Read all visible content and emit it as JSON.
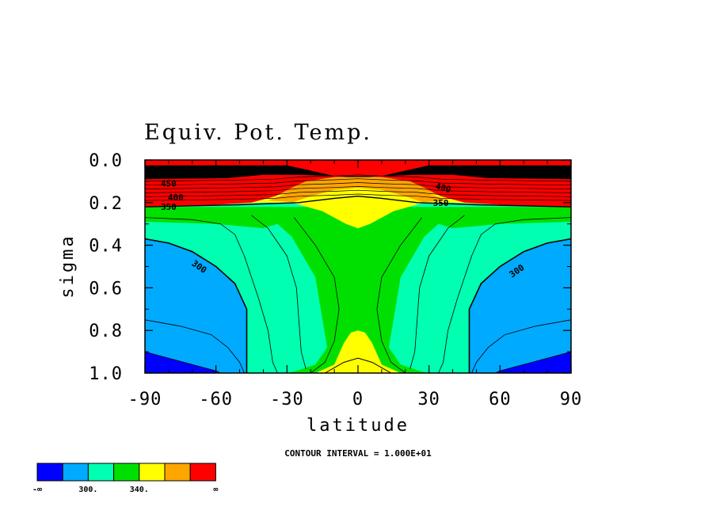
{
  "chart_data": {
    "type": "contour",
    "title": "Equiv. Pot. Temp.",
    "xlabel": "latitude",
    "ylabel": "sigma",
    "xlim": [
      -90,
      90
    ],
    "ylim": [
      1.0,
      0.0
    ],
    "x_ticks": [
      -90,
      -60,
      -30,
      0,
      30,
      60,
      90
    ],
    "x_tick_labels": [
      "-90",
      "-60",
      "-30",
      "0",
      "30",
      "60",
      "90"
    ],
    "y_ticks": [
      0.0,
      0.2,
      0.4,
      0.6,
      0.8,
      1.0
    ],
    "y_tick_labels": [
      "0.0",
      "0.2",
      "0.4",
      "0.6",
      "0.8",
      "1.0"
    ],
    "contour_interval_text": "CONTOUR INTERVAL = 1.000E+01",
    "contour_labels": [
      "300",
      "300",
      "350",
      "350",
      "400",
      "400",
      "450"
    ],
    "colorbar": {
      "colors": [
        "#0000ff",
        "#00aaff",
        "#00ffb0",
        "#00e000",
        "#ffff00",
        "#ffa500",
        "#ff0000"
      ],
      "labels": [
        "-∞",
        "300.",
        "340.",
        "∞"
      ]
    },
    "levels": {
      "fill_colors": [
        "#0000ff",
        "#00aaff",
        "#00ffb0",
        "#00e000",
        "#ffff00",
        "#ffa500",
        "#ff0000"
      ],
      "upper_black_region": true
    }
  }
}
